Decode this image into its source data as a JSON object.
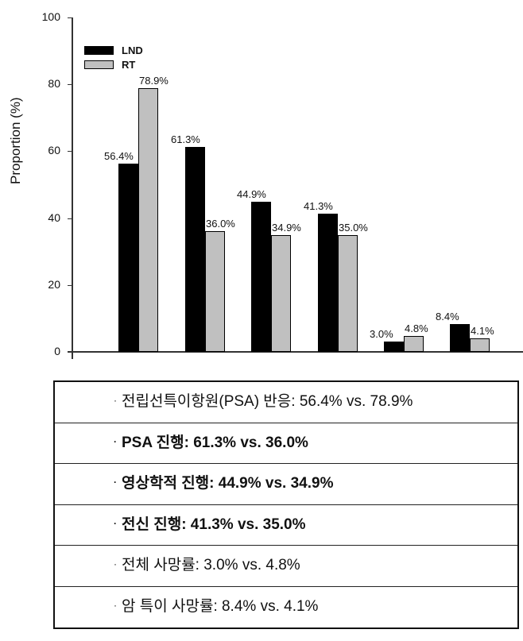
{
  "chart_data": {
    "type": "bar",
    "title": "",
    "xlabel": "",
    "ylabel": "Proportion (%)",
    "ylim": [
      0,
      100
    ],
    "yticks": [
      0,
      20,
      40,
      60,
      80,
      100
    ],
    "grid": false,
    "legend_position": "upper-left",
    "categories": [
      "PSA response",
      "PSA progression",
      "Radiographic progression",
      "Systemic progression",
      "Overall mortality",
      "Cancer-specific mortality"
    ],
    "series": [
      {
        "name": "LND",
        "color": "#000000",
        "values": [
          56.4,
          61.3,
          44.9,
          41.3,
          3.0,
          8.4
        ],
        "labels": [
          "56.4%",
          "61.3%",
          "44.9%",
          "41.3%",
          "3.0%",
          "8.4%"
        ]
      },
      {
        "name": "RT",
        "color": "#c0c0c0",
        "values": [
          78.9,
          36.0,
          34.9,
          35.0,
          4.8,
          4.1
        ],
        "labels": [
          "78.9%",
          "36.0%",
          "34.9%",
          "35.0%",
          "4.8%",
          "4.1%"
        ]
      }
    ]
  },
  "axis": {
    "ylabel": "Proportion (%)",
    "ticks": [
      "0",
      "20",
      "40",
      "60",
      "80",
      "100"
    ]
  },
  "legend": {
    "lnd": "LND",
    "rt": "RT"
  },
  "summary": {
    "bullet": "·",
    "rows": [
      {
        "text": "전립선특이항원(PSA) 반응: 56.4% vs. 78.9%",
        "bold": false
      },
      {
        "text": "PSA 진행: 61.3% vs. 36.0%",
        "bold": true
      },
      {
        "text": "영상학적 진행: 44.9% vs. 34.9%",
        "bold": true
      },
      {
        "text": "전신 진행: 41.3% vs. 35.0%",
        "bold": true
      },
      {
        "text": "전체 사망률: 3.0% vs. 4.8%",
        "bold": false
      },
      {
        "text": "암 특이 사망률: 8.4% vs. 4.1%",
        "bold": false
      }
    ]
  }
}
